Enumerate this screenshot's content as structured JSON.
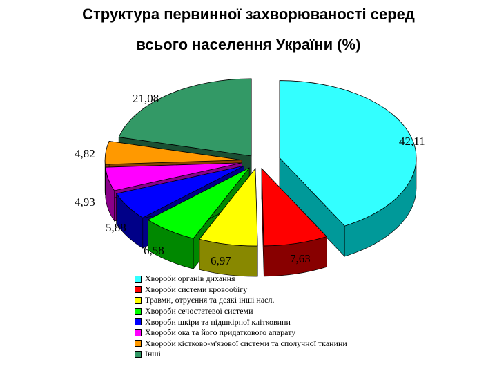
{
  "title_line1": "Структура первинної захворюваності серед",
  "title_line2": "всього населення України (%)",
  "chart_data": {
    "type": "pie",
    "three_d": true,
    "exploded": true,
    "legend_position": "bottom",
    "series": [
      {
        "name": "Хвороби органів дихання",
        "value": 42.11,
        "label": "42,11",
        "color": "#33FFFF",
        "side_color": "#009999"
      },
      {
        "name": "Хвороби системи кровообігу",
        "value": 7.63,
        "label": "7,63",
        "color": "#FF0000",
        "side_color": "#880000"
      },
      {
        "name": "Травми, отруєння та деякі інші насл.",
        "value": 6.97,
        "label": "6,97",
        "color": "#FFFF00",
        "side_color": "#888800"
      },
      {
        "name": "Хвороби сечостатевої системи",
        "value": 6.58,
        "label": "6,58",
        "color": "#00FF00",
        "side_color": "#008800"
      },
      {
        "name": "Хвороби шкіри та підшкірної клітковини",
        "value": 5.88,
        "label": "5,88",
        "color": "#0000FF",
        "side_color": "#000088"
      },
      {
        "name": "Хвороби ока та його придаткового апарату",
        "value": 4.93,
        "label": "4,93",
        "color": "#FF00FF",
        "side_color": "#880088"
      },
      {
        "name": "Хвороби кістково-м'язової системи та сполучної тканини",
        "value": 4.82,
        "label": "4,82",
        "color": "#FF9900",
        "side_color": "#884400"
      },
      {
        "name": "Інші",
        "value": 21.08,
        "label": "21,08",
        "color": "#339966",
        "side_color": "#1A5033"
      }
    ]
  }
}
